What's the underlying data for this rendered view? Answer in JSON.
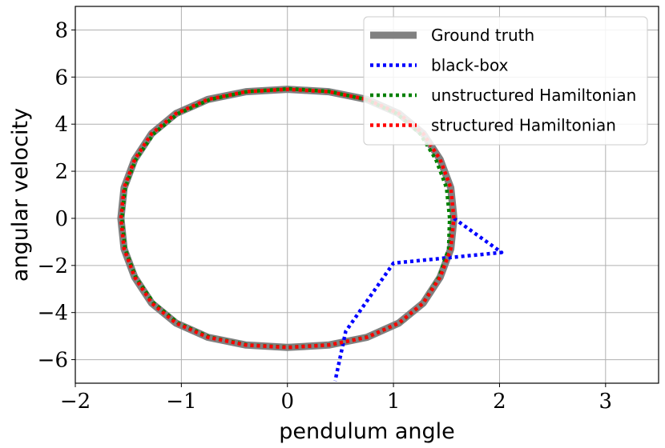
{
  "chart_data": {
    "type": "line",
    "title": "",
    "xlabel": "pendulum angle",
    "ylabel": "angular velocity",
    "xlim": [
      -2,
      3.5
    ],
    "ylim": [
      -7,
      9
    ],
    "xticks": [
      -2,
      -1,
      0,
      1,
      2,
      3
    ],
    "yticks": [
      -6,
      -4,
      -2,
      0,
      2,
      4,
      6,
      8
    ],
    "xtick_labels": [
      "−2",
      "−1",
      "0",
      "1",
      "2",
      "3"
    ],
    "ytick_labels": [
      "−6",
      "−4",
      "−2",
      "0",
      "2",
      "4",
      "6",
      "8"
    ],
    "grid": true,
    "legend_position": "top-right",
    "series": [
      {
        "name": "Ground truth",
        "color": "#808080",
        "style": "solid",
        "x": [
          1.57,
          1.54,
          1.44,
          1.28,
          1.05,
          0.75,
          0.39,
          0.0,
          -0.39,
          -0.75,
          -1.05,
          -1.28,
          -1.44,
          -1.54,
          -1.57,
          -1.54,
          -1.44,
          -1.28,
          -1.05,
          -0.75,
          -0.39,
          0.0,
          0.39,
          0.75,
          1.05,
          1.28,
          1.44,
          1.54,
          1.57
        ],
        "y": [
          0.0,
          1.3,
          2.5,
          3.6,
          4.45,
          5.05,
          5.38,
          5.48,
          5.38,
          5.05,
          4.45,
          3.6,
          2.5,
          1.3,
          0.0,
          -1.3,
          -2.5,
          -3.6,
          -4.45,
          -5.05,
          -5.38,
          -5.48,
          -5.38,
          -5.05,
          -4.45,
          -3.6,
          -2.5,
          -1.3,
          0.0
        ]
      },
      {
        "name": "black-box",
        "color": "#0000ff",
        "style": "dotted",
        "x": [
          1.57,
          2.02,
          1.0,
          0.55,
          0.45
        ],
        "y": [
          0.0,
          -1.45,
          -1.9,
          -4.8,
          -6.9
        ]
      },
      {
        "name": "unstructured Hamiltonian",
        "color": "#008000",
        "style": "dotted",
        "x": [
          1.53,
          1.5,
          1.4,
          1.25,
          1.03,
          0.74,
          0.39,
          0.02,
          -0.37,
          -0.73,
          -1.03,
          -1.26,
          -1.43,
          -1.53,
          -1.56,
          -1.53,
          -1.43,
          -1.26,
          -1.03,
          -0.73,
          -0.37,
          0.02,
          0.41,
          0.76,
          1.06,
          1.28,
          1.43,
          1.52,
          1.53
        ],
        "y": [
          0.0,
          1.3,
          2.5,
          3.6,
          4.45,
          5.05,
          5.39,
          5.5,
          5.39,
          5.05,
          4.45,
          3.6,
          2.5,
          1.3,
          0.0,
          -1.3,
          -2.5,
          -3.6,
          -4.45,
          -5.05,
          -5.38,
          -5.47,
          -5.37,
          -5.03,
          -4.43,
          -3.6,
          -2.5,
          -1.3,
          0.0
        ]
      },
      {
        "name": "structured Hamiltonian",
        "color": "#ff0000",
        "style": "dotted",
        "x": [
          1.57,
          1.54,
          1.44,
          1.28,
          1.05,
          0.75,
          0.39,
          0.0,
          -0.39,
          -0.75,
          -1.05,
          -1.28,
          -1.44,
          -1.54,
          -1.57,
          -1.54,
          -1.44,
          -1.28,
          -1.05,
          -0.75,
          -0.39,
          0.0,
          0.39,
          0.75,
          1.05,
          1.28,
          1.44,
          1.54,
          1.57
        ],
        "y": [
          0.0,
          1.3,
          2.5,
          3.6,
          4.45,
          5.05,
          5.38,
          5.48,
          5.38,
          5.05,
          4.45,
          3.6,
          2.5,
          1.3,
          0.0,
          -1.3,
          -2.5,
          -3.6,
          -4.45,
          -5.05,
          -5.38,
          -5.48,
          -5.38,
          -5.05,
          -4.45,
          -3.6,
          -2.5,
          -1.3,
          0.0
        ]
      }
    ]
  }
}
